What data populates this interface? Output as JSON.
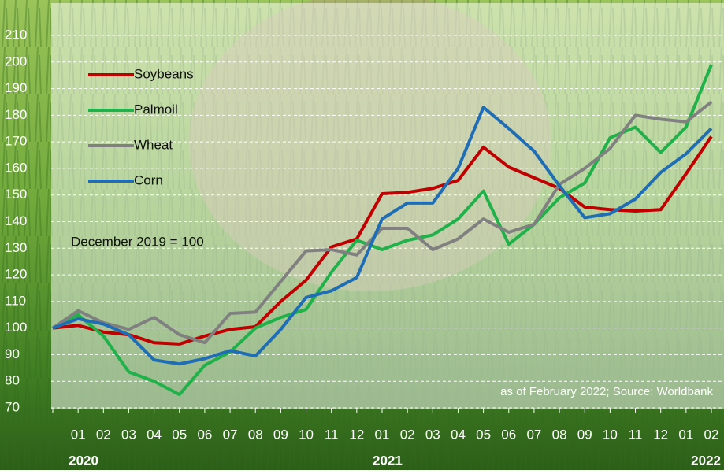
{
  "chart_data": {
    "type": "line",
    "categories": [
      null,
      "01",
      "02",
      "03",
      "04",
      "05",
      "06",
      "07",
      "08",
      "09",
      "10",
      "11",
      "12",
      "01",
      "02",
      "03",
      "04",
      "05",
      "06",
      "07",
      "08",
      "09",
      "10",
      "11",
      "12",
      "01",
      "02"
    ],
    "year_labels": [
      "2020",
      "2021",
      "2022"
    ],
    "series": [
      {
        "name": "Soybeans",
        "color": "#c00000",
        "values": [
          100,
          101,
          98.5,
          97.5,
          94.5,
          94,
          97,
          99.5,
          100.5,
          110,
          118,
          130.5,
          133.5,
          150.5,
          151,
          152.5,
          155.5,
          168,
          160.5,
          156.5,
          152.5,
          145.5,
          144.5,
          144,
          144.5,
          158,
          172
        ]
      },
      {
        "name": "Palmoil",
        "color": "#21b14b",
        "values": [
          100,
          105,
          97,
          83.5,
          80,
          75,
          86,
          91,
          100,
          104,
          107,
          121,
          133,
          129.5,
          133,
          135,
          141,
          151.5,
          131.5,
          139,
          149,
          154.5,
          171.5,
          175.5,
          166,
          175.5,
          199
        ]
      },
      {
        "name": "Wheat",
        "color": "#808080",
        "values": [
          100,
          106.5,
          102,
          99.5,
          104,
          97.5,
          94.5,
          105.5,
          106,
          117.5,
          129,
          129.5,
          127.5,
          137.5,
          137.5,
          129.5,
          133.5,
          141,
          136,
          139,
          154,
          160,
          167.5,
          180,
          178.5,
          177.5,
          185
        ]
      },
      {
        "name": "Corn",
        "color": "#1f6db5",
        "values": [
          100,
          103.5,
          101.5,
          97.5,
          88,
          86.5,
          88.5,
          91.5,
          89.5,
          99.5,
          111.5,
          114,
          119,
          141,
          147,
          147,
          160,
          183,
          175,
          166.5,
          153.5,
          141.5,
          143,
          148.5,
          158.5,
          165.5,
          175
        ]
      }
    ],
    "ylim": [
      70,
      210
    ],
    "yticks": [
      70,
      80,
      90,
      100,
      110,
      120,
      130,
      140,
      150,
      160,
      170,
      180,
      190,
      200,
      210
    ],
    "grid": true,
    "legend": "upper-left",
    "annotations": [
      "December 2019 = 100",
      "as of February 2022; Source: Worldbank"
    ]
  }
}
